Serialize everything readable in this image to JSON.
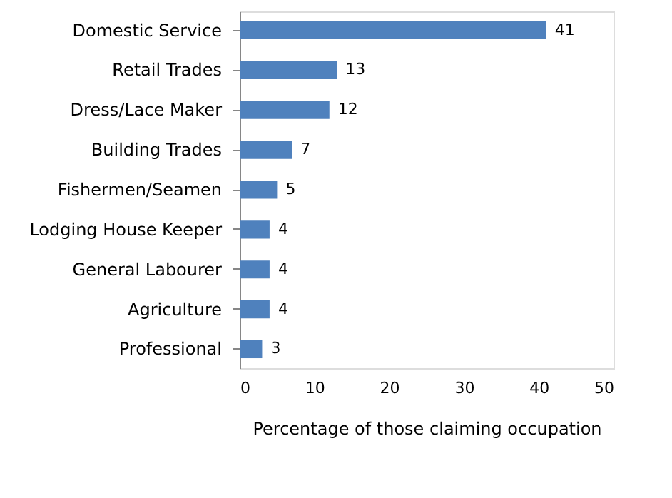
{
  "chart_data": {
    "type": "bar",
    "orientation": "horizontal",
    "categories": [
      "Domestic Service",
      "Retail Trades",
      "Dress/Lace Maker",
      "Building Trades",
      "Fishermen/Seamen",
      "Lodging House Keeper",
      "General Labourer",
      "Agriculture",
      "Professional"
    ],
    "values": [
      41,
      13,
      12,
      7,
      5,
      4,
      4,
      4,
      3
    ],
    "color": "#4f81bd",
    "xlabel": "Percentage of those claiming occupation",
    "xlim": [
      0,
      50
    ],
    "xticks": [
      0,
      10,
      20,
      30,
      40,
      50
    ],
    "data_labels": true,
    "grid": false
  }
}
